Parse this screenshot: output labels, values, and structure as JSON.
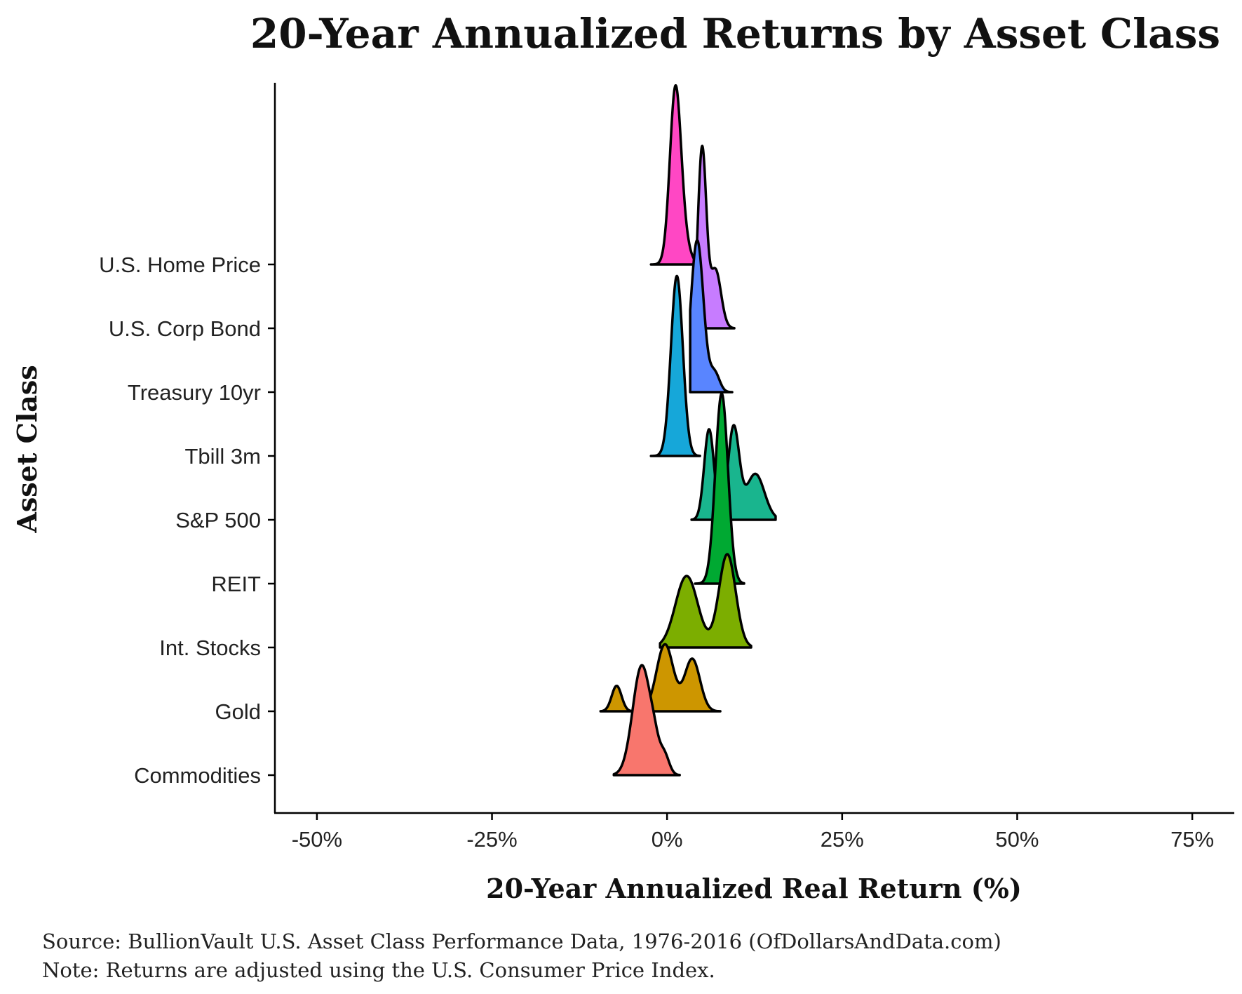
{
  "chart_data": {
    "type": "ridgeline",
    "title": "20-Year Annualized Returns by Asset Class",
    "xlabel": "20-Year Annualized Real Return (%)",
    "ylabel": "Asset Class",
    "xlim": [
      -0.56,
      0.81
    ],
    "x_ticks": [
      {
        "value": -0.5,
        "label": "-50%"
      },
      {
        "value": -0.25,
        "label": "-25%"
      },
      {
        "value": 0,
        "label": "0%"
      },
      {
        "value": 0.25,
        "label": "25%"
      },
      {
        "value": 0.5,
        "label": "50%"
      },
      {
        "value": 0.75,
        "label": "75%"
      }
    ],
    "categories": [
      "Commodities",
      "Gold",
      "Int. Stocks",
      "REIT",
      "S&P 500",
      "Tbill 3m",
      "Treasury 10yr",
      "U.S. Corp Bond",
      "U.S. Home Price"
    ],
    "series": [
      {
        "name": "Commodities",
        "color": "#F8766D",
        "range": [
          -0.076,
          0.018
        ],
        "peaks": [
          {
            "center": -0.036,
            "sd": 0.013,
            "height": 1.72
          },
          {
            "center": -0.018,
            "sd": 0.006,
            "height": 0.22
          },
          {
            "center": -0.004,
            "sd": 0.007,
            "height": 0.3
          }
        ]
      },
      {
        "name": "Gold",
        "color": "#CD9600",
        "range": [
          -0.095,
          0.076
        ],
        "peaks": [
          {
            "center": -0.072,
            "sd": 0.007,
            "height": 0.4
          },
          {
            "center": -0.003,
            "sd": 0.012,
            "height": 1.05
          },
          {
            "center": 0.036,
            "sd": 0.011,
            "height": 0.82
          }
        ]
      },
      {
        "name": "Int. Stocks",
        "color": "#7CAE00",
        "range": [
          -0.01,
          0.12
        ],
        "peaks": [
          {
            "center": 0.028,
            "sd": 0.016,
            "height": 1.12
          },
          {
            "center": 0.086,
            "sd": 0.012,
            "height": 1.46
          }
        ]
      },
      {
        "name": "REIT",
        "color": "#00A932",
        "range": [
          0.04,
          0.11
        ],
        "peaks": [
          {
            "center": 0.078,
            "sd": 0.009,
            "height": 2.98
          }
        ]
      },
      {
        "name": "S&P 500",
        "color": "#19B58E",
        "range": [
          0.035,
          0.155
        ],
        "peaks": [
          {
            "center": 0.06,
            "sd": 0.007,
            "height": 1.42
          },
          {
            "center": 0.095,
            "sd": 0.008,
            "height": 1.44
          },
          {
            "center": 0.126,
            "sd": 0.013,
            "height": 0.72
          }
        ]
      },
      {
        "name": "Tbill 3m",
        "color": "#16A7D9",
        "range": [
          -0.023,
          0.047
        ],
        "peaks": [
          {
            "center": 0.014,
            "sd": 0.0085,
            "height": 2.82
          }
        ]
      },
      {
        "name": "Treasury 10yr",
        "color": "#5985FF",
        "range": [
          0.033,
          0.093
        ],
        "peaks": [
          {
            "center": 0.043,
            "sd": 0.009,
            "height": 2.38
          },
          {
            "center": 0.068,
            "sd": 0.007,
            "height": 0.3
          }
        ]
      },
      {
        "name": "U.S. Corp Bond",
        "color": "#C77CFF",
        "range": [
          0.035,
          0.096
        ],
        "peaks": [
          {
            "center": 0.05,
            "sd": 0.006,
            "height": 2.8
          },
          {
            "center": 0.069,
            "sd": 0.008,
            "height": 0.92
          }
        ]
      },
      {
        "name": "U.S. Home Price",
        "color": "#FF47C4",
        "range": [
          -0.023,
          0.047
        ],
        "peaks": [
          {
            "center": 0.012,
            "sd": 0.008,
            "height": 2.75
          },
          {
            "center": 0.026,
            "sd": 0.008,
            "height": 0.25
          }
        ]
      }
    ],
    "grid": false,
    "legend": "none"
  },
  "caption": {
    "source": "Source:  BullionVault U.S. Asset Class Performance Data, 1976-2016 (OfDollarsAndData.com)",
    "note": "Note:  Returns are adjusted using the U.S. Consumer Price Index."
  }
}
